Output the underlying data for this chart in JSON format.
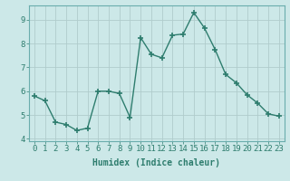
{
  "x": [
    0,
    1,
    2,
    3,
    4,
    5,
    6,
    7,
    8,
    9,
    10,
    11,
    12,
    13,
    14,
    15,
    16,
    17,
    18,
    19,
    20,
    21,
    22,
    23
  ],
  "y": [
    5.8,
    5.6,
    4.7,
    4.6,
    4.35,
    4.45,
    6.0,
    6.0,
    5.9,
    4.9,
    8.25,
    7.55,
    7.4,
    8.35,
    8.4,
    9.3,
    8.65,
    7.75,
    6.7,
    6.35,
    5.85,
    5.5,
    5.05,
    4.95
  ],
  "line_color": "#2e7d6e",
  "marker": "+",
  "marker_size": 4,
  "bg_color": "#cce8e8",
  "grid_color": "#b0cccc",
  "xlabel": "Humidex (Indice chaleur)",
  "xlabel_fontsize": 7,
  "tick_fontsize": 6.5,
  "ylim": [
    3.9,
    9.6
  ],
  "xlim": [
    -0.5,
    23.5
  ],
  "yticks": [
    4,
    5,
    6,
    7,
    8,
    9
  ],
  "xticks": [
    0,
    1,
    2,
    3,
    4,
    5,
    6,
    7,
    8,
    9,
    10,
    11,
    12,
    13,
    14,
    15,
    16,
    17,
    18,
    19,
    20,
    21,
    22,
    23
  ],
  "line_width": 1.0,
  "marker_edge_width": 1.2
}
